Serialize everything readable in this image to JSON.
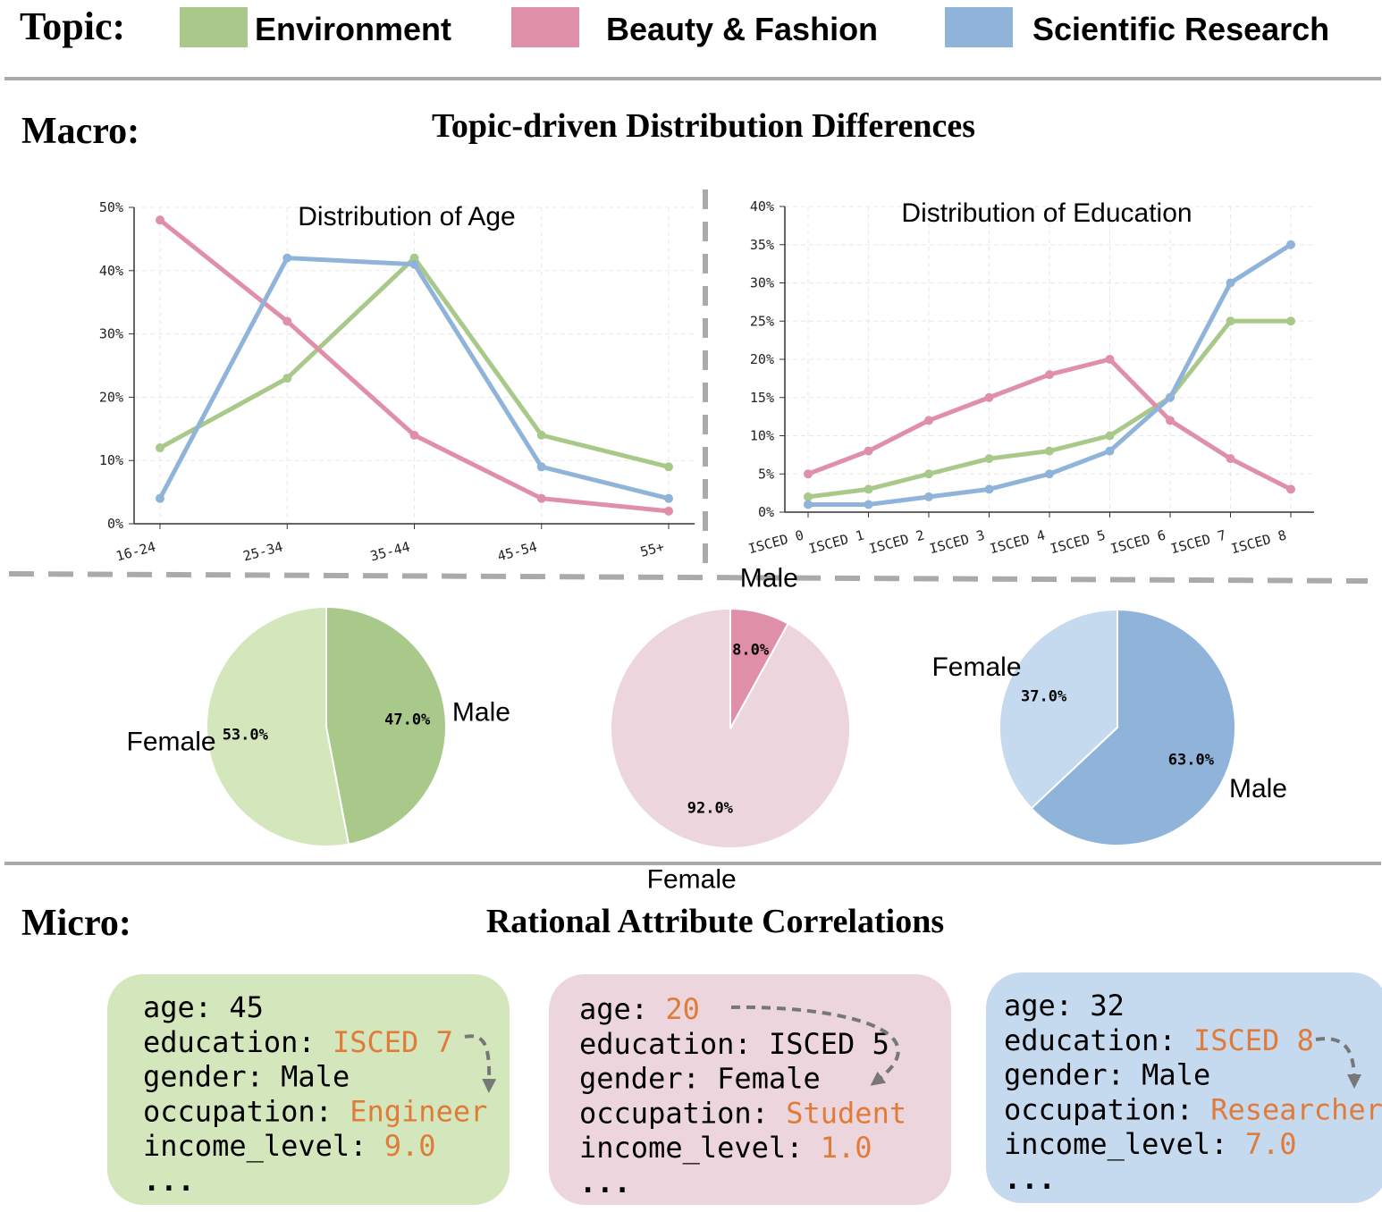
{
  "topic_label": "Topic:",
  "macro": {
    "label": "Macro:",
    "title": "Topic-driven Distribution Differences"
  },
  "micro": {
    "label": "Micro:",
    "title": "Rational Attribute Correlations",
    "highlight_color": "#e07b39",
    "cards": [
      {
        "color": "#d4e6bc",
        "lines": [
          {
            "key": "age:",
            "value": "45"
          },
          {
            "key": "education:",
            "value": "ISCED 7",
            "highlight": true
          },
          {
            "key": "gender:",
            "value": "Male"
          },
          {
            "key": "occupation:",
            "value": "Engineer",
            "highlight": true
          },
          {
            "key": "income_level:",
            "value": "9.0",
            "highlight": true
          }
        ],
        "ellipsis": "..."
      },
      {
        "color": "#ecd5dc",
        "lines": [
          {
            "key": "age:",
            "value": "20",
            "highlight": true
          },
          {
            "key": "education:",
            "value": "ISCED 5"
          },
          {
            "key": "gender:",
            "value": "Female"
          },
          {
            "key": "occupation:",
            "value": "Student",
            "highlight": true
          },
          {
            "key": "income_level:",
            "value": "1.0",
            "highlight": true
          }
        ],
        "ellipsis": "..."
      },
      {
        "color": "#c5d9ef",
        "lines": [
          {
            "key": "age:",
            "value": "32"
          },
          {
            "key": "education:",
            "value": "ISCED 8",
            "highlight": true
          },
          {
            "key": "gender:",
            "value": "Male"
          },
          {
            "key": "occupation:",
            "value": "Researcher",
            "highlight": true
          },
          {
            "key": "income_level:",
            "value": "7.0",
            "highlight": true
          }
        ],
        "ellipsis": "..."
      }
    ]
  },
  "chart_data": [
    {
      "type": "line",
      "title": "Distribution of Age",
      "grid": true,
      "categories": [
        "16-24",
        "25-34",
        "35-44",
        "45-54",
        "55+"
      ],
      "series": [
        {
          "name": "Environment",
          "color": "#a8c98a",
          "values": [
            12,
            23,
            42,
            14,
            9
          ]
        },
        {
          "name": "Beauty & Fashion",
          "color": "#e08fa8",
          "values": [
            48,
            32,
            14,
            4,
            2
          ]
        },
        {
          "name": "Scientific Research",
          "color": "#8fb3d9",
          "values": [
            4,
            42,
            41,
            9,
            4
          ]
        }
      ],
      "ylim": [
        0,
        50
      ],
      "yticks": [
        {
          "value": 0,
          "label": "0%"
        },
        {
          "value": 10,
          "label": "10%"
        },
        {
          "value": 20,
          "label": "20%"
        },
        {
          "value": 30,
          "label": "30%"
        },
        {
          "value": 40,
          "label": "40%"
        },
        {
          "value": 50,
          "label": "50%"
        }
      ]
    },
    {
      "type": "line",
      "title": "Distribution of Education",
      "grid": true,
      "categories": [
        "ISCED 0",
        "ISCED 1",
        "ISCED 2",
        "ISCED 3",
        "ISCED 4",
        "ISCED 5",
        "ISCED 6",
        "ISCED 7",
        "ISCED 8"
      ],
      "series": [
        {
          "color": "#a8c98a",
          "values": [
            2,
            3,
            5,
            7,
            8,
            10,
            15,
            25,
            25
          ]
        },
        {
          "color": "#e08fa8",
          "values": [
            5,
            8,
            12,
            15,
            18,
            20,
            12,
            7,
            3
          ]
        },
        {
          "color": "#8fb3d9",
          "values": [
            1,
            1,
            2,
            3,
            5,
            8,
            15,
            30,
            35
          ]
        }
      ],
      "ylim": [
        0,
        40
      ],
      "yticks": [
        {
          "value": 0,
          "label": "0%"
        },
        {
          "value": 5,
          "label": "5%"
        },
        {
          "value": 10,
          "label": "10%"
        },
        {
          "value": 15,
          "label": "15%"
        },
        {
          "value": 20,
          "label": "20%"
        },
        {
          "value": 25,
          "label": "25%"
        },
        {
          "value": 30,
          "label": "30%"
        },
        {
          "value": 35,
          "label": "35%"
        },
        {
          "value": 40,
          "label": "40%"
        }
      ]
    },
    {
      "type": "pie",
      "categories": [
        "Female",
        "Male"
      ],
      "values": [
        53,
        47
      ],
      "value_labels": [
        "53.0%",
        "47.0%"
      ],
      "colors": [
        "#d4e6bc",
        "#a8c98a"
      ]
    },
    {
      "type": "pie",
      "categories": [
        "Female",
        "Male"
      ],
      "values": [
        92,
        8
      ],
      "value_labels": [
        "92.0%",
        "8.0%"
      ],
      "colors": [
        "#ecd5dc",
        "#e08fa8"
      ]
    },
    {
      "type": "pie",
      "categories": [
        "Female",
        "Male"
      ],
      "values": [
        37,
        63
      ],
      "value_labels": [
        "37.0%",
        "63.0%"
      ],
      "colors": [
        "#c5d9ef",
        "#8fb3d9"
      ]
    }
  ]
}
